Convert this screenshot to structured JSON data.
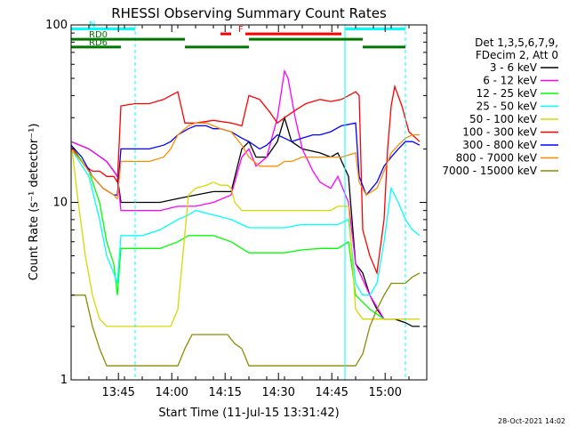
{
  "chart_data": {
    "type": "line",
    "title": "RHESSI Observing Summary Count Rates",
    "xlabel": "Start Time (11-Jul-15 13:31:42)",
    "ylabel": "Count Rate (s⁻¹ detector⁻¹)",
    "x_unit": "UT minutes since 13:31:42",
    "xlim": [
      0,
      100
    ],
    "ylim": [
      1,
      100
    ],
    "yscale": "log",
    "x_ticks": [
      {
        "x": 13.3,
        "label": "13:45"
      },
      {
        "x": 28.3,
        "label": "14:00"
      },
      {
        "x": 43.3,
        "label": "14:15"
      },
      {
        "x": 58.3,
        "label": "14:30"
      },
      {
        "x": 73.3,
        "label": "14:45"
      },
      {
        "x": 88.3,
        "label": "15:00"
      }
    ],
    "y_ticks": [
      {
        "y": 1,
        "label": "1"
      },
      {
        "y": 10,
        "label": "10"
      },
      {
        "y": 100,
        "label": "100"
      }
    ],
    "legend_header": [
      "Det 1,3,5,6,7,9,",
      "FDecim 2, Att 0"
    ],
    "series": [
      {
        "name": "3 - 6 keV",
        "color": "#000000",
        "x": [
          0,
          5,
          10,
          12,
          13,
          14,
          18,
          25,
          30,
          35,
          40,
          45,
          48,
          50,
          52,
          55,
          58,
          60,
          62,
          65,
          70,
          73,
          75,
          78,
          80,
          82,
          84,
          86,
          88,
          91,
          94,
          96,
          98
        ],
        "y": [
          22,
          20,
          17,
          15,
          14,
          10,
          10,
          10,
          10.5,
          11,
          11.5,
          11.5,
          20,
          22,
          18,
          18,
          22,
          30,
          22,
          20,
          19,
          18,
          19,
          14,
          4.5,
          4,
          3,
          2.5,
          2.2,
          2.2,
          2.1,
          2,
          2
        ]
      },
      {
        "name": "6 - 12 keV",
        "color": "#ff00ff",
        "x": [
          0,
          5,
          10,
          12,
          13,
          14,
          18,
          25,
          30,
          35,
          40,
          45,
          48,
          50,
          52,
          55,
          58,
          60,
          61,
          63,
          65,
          68,
          70,
          73,
          75,
          78,
          80,
          84,
          88
        ],
        "y": [
          22,
          20,
          17,
          15,
          14,
          9,
          9,
          9,
          9.5,
          9.5,
          10,
          11,
          18,
          20,
          16,
          18,
          30,
          55,
          50,
          30,
          20,
          15,
          13,
          12,
          14,
          10,
          4.5,
          3,
          2.2
        ]
      },
      {
        "name": "12 - 25 keV",
        "color": "#00ff00",
        "x": [
          0,
          5,
          8,
          10,
          12,
          13,
          14,
          20,
          25,
          30,
          33,
          35,
          40,
          45,
          48,
          50,
          55,
          60,
          65,
          70,
          73,
          75,
          78,
          80,
          84,
          88
        ],
        "y": [
          21,
          15,
          10,
          6,
          4.5,
          3,
          5.5,
          5.5,
          5.5,
          6,
          6.5,
          6.5,
          6.5,
          6,
          5.5,
          5.2,
          5.2,
          5.2,
          5.4,
          5.5,
          5.5,
          5.5,
          6,
          3,
          2.5,
          2.2
        ]
      },
      {
        "name": "25 - 50 keV",
        "color": "#00ffff",
        "x": [
          0,
          5,
          8,
          10,
          12,
          13,
          14,
          20,
          25,
          30,
          33,
          35,
          40,
          45,
          48,
          50,
          55,
          60,
          65,
          70,
          73,
          75,
          78,
          80,
          82,
          84,
          86,
          88,
          90,
          92,
          94,
          96,
          98
        ],
        "y": [
          20,
          14,
          8,
          5,
          4,
          3.5,
          6.5,
          6.5,
          7,
          8,
          8.5,
          9,
          8.5,
          8,
          7.5,
          7.2,
          7.2,
          7.2,
          7.5,
          7.5,
          7.5,
          7.5,
          8,
          3.5,
          3,
          3,
          3.5,
          6,
          12,
          10,
          8,
          7,
          6.5
        ]
      },
      {
        "name": "50 - 100 keV",
        "color": "#d8d800",
        "x": [
          0,
          2,
          4,
          6,
          8,
          10,
          12,
          13,
          14,
          16,
          18,
          20,
          22,
          25,
          28,
          30,
          33,
          35,
          38,
          40,
          42,
          44,
          45,
          46,
          48,
          50,
          55,
          60,
          65,
          70,
          73,
          75,
          78,
          80,
          82,
          84,
          86,
          88,
          90,
          92,
          94,
          96,
          98
        ],
        "y": [
          22,
          10,
          5,
          3,
          2.2,
          2,
          2,
          2,
          2,
          2,
          2,
          2,
          2,
          2,
          2,
          2.5,
          11,
          12,
          12.5,
          13,
          12.5,
          12.5,
          12,
          10,
          9,
          9,
          9,
          9,
          9,
          9,
          9,
          9.5,
          9.5,
          2.5,
          2.2,
          2.2,
          2.2,
          2.2,
          2.2,
          2.2,
          2.2,
          2.2,
          2.2
        ]
      },
      {
        "name": "100 - 300 keV",
        "color": "#ff0000",
        "x": [
          0,
          2,
          4,
          6,
          8,
          10,
          12,
          13,
          14,
          18,
          22,
          26,
          28,
          30,
          32,
          35,
          40,
          45,
          48,
          50,
          53,
          56,
          58,
          60,
          63,
          66,
          70,
          73,
          76,
          80,
          81,
          82,
          84,
          86,
          88,
          89,
          90,
          91,
          93,
          95,
          98
        ],
        "y": [
          21,
          18,
          16,
          15,
          15,
          14,
          14,
          13,
          35,
          36,
          36,
          38,
          40,
          42,
          28,
          28,
          29,
          28,
          27,
          40,
          38,
          32,
          28,
          30,
          33,
          36,
          38,
          37,
          38,
          42,
          40,
          7,
          5,
          4,
          8,
          20,
          35,
          45,
          35,
          25,
          22
        ]
      },
      {
        "name": "300 - 800 keV",
        "color": "#0000ff",
        "x": [
          0,
          3,
          6,
          9,
          12,
          13,
          14,
          18,
          22,
          26,
          28,
          30,
          33,
          35,
          38,
          40,
          42,
          45,
          48,
          50,
          53,
          55,
          58,
          60,
          62,
          65,
          68,
          70,
          73,
          76,
          80,
          81,
          83,
          86,
          88,
          90,
          92,
          94,
          96,
          98
        ],
        "y": [
          21,
          18,
          14,
          12,
          11,
          11,
          20,
          20,
          20,
          21,
          22,
          24,
          26,
          27,
          27,
          26,
          26,
          25,
          23,
          22,
          20,
          21,
          24,
          23,
          22,
          23,
          24,
          24,
          25,
          27,
          28,
          14,
          11,
          13,
          16,
          18,
          20,
          22,
          22,
          21
        ]
      },
      {
        "name": "800 - 7000 keV",
        "color": "#ff8c00",
        "x": [
          0,
          3,
          6,
          9,
          12,
          13,
          14,
          18,
          22,
          26,
          28,
          30,
          33,
          35,
          38,
          40,
          42,
          45,
          48,
          50,
          53,
          55,
          58,
          60,
          62,
          65,
          68,
          70,
          73,
          76,
          80,
          81,
          83,
          86,
          88,
          90,
          92,
          94,
          96,
          98
        ],
        "y": [
          20,
          17,
          14,
          12,
          11,
          10.5,
          17,
          17,
          17,
          18,
          20,
          24,
          27,
          28,
          28,
          27,
          26,
          25,
          21,
          18,
          16,
          16,
          16,
          17,
          17,
          18,
          18,
          18,
          18,
          18,
          19,
          13,
          11,
          12,
          15,
          19,
          21,
          23,
          24,
          24
        ]
      },
      {
        "name": "7000 - 15000 keV",
        "color": "#8b8b00",
        "x": [
          0,
          4,
          6,
          8,
          10,
          12,
          13,
          14,
          16,
          18,
          20,
          22,
          25,
          28,
          30,
          32,
          34,
          36,
          38,
          40,
          42,
          44,
          46,
          48,
          50,
          60,
          70,
          75,
          80,
          82,
          84,
          86,
          88,
          90,
          92,
          94,
          96,
          98
        ],
        "y": [
          3,
          3,
          2,
          1.5,
          1.2,
          1.2,
          1.2,
          1.2,
          1.2,
          1.2,
          1.2,
          1.2,
          1.2,
          1.2,
          1.2,
          1.5,
          1.8,
          1.8,
          1.8,
          1.8,
          1.8,
          1.8,
          1.6,
          1.5,
          1.2,
          1.2,
          1.2,
          1.2,
          1.2,
          1.4,
          2,
          2.5,
          3,
          3.5,
          3.5,
          3.5,
          3.8,
          4
        ]
      }
    ],
    "annotations": [
      {
        "label": "N",
        "color": "#00ffff",
        "x_start": 0,
        "x_end": 18,
        "y": 95
      },
      {
        "label": "",
        "color": "#00ffff",
        "x_start": 77,
        "x_end": 94,
        "y": 95
      },
      {
        "label": "F",
        "color": "#ff0000",
        "x_start": 42,
        "x_end": 45,
        "y": 89
      },
      {
        "label": "",
        "color": "#ff0000",
        "x_start": 49,
        "x_end": 76,
        "y": 89
      },
      {
        "label": "RD0",
        "color": "#007700",
        "x_start": 0,
        "x_end": 32,
        "y": 83
      },
      {
        "label": "RD6",
        "color": "#007700",
        "x_start": 0,
        "x_end": 14,
        "y": 75
      },
      {
        "label": "",
        "color": "#007700",
        "x_start": 50,
        "x_end": 82,
        "y": 83
      },
      {
        "label": "",
        "color": "#007700",
        "x_start": 32,
        "x_end": 50,
        "y": 75
      },
      {
        "label": "",
        "color": "#007700",
        "x_start": 82,
        "x_end": 94,
        "y": 75
      }
    ],
    "vlines_solid": [
      0,
      77
    ],
    "vlines_dashed": [
      18,
      94
    ],
    "vline_color": "#00ffff",
    "timestamp": "28-Oct-2021 14:02"
  }
}
